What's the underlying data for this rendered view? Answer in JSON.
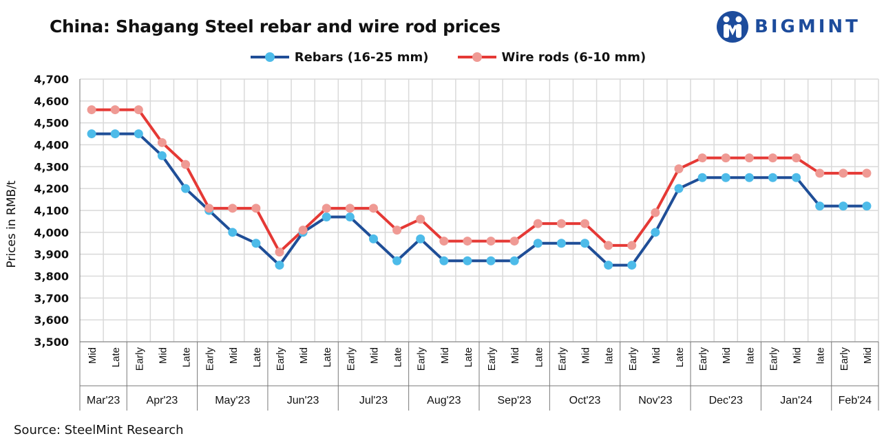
{
  "title": "China: Shagang Steel rebar and wire rod prices",
  "logo": {
    "text": "BIGMINT",
    "icon": "bigmint-logo-icon",
    "color": "#1d4c9c"
  },
  "source": "Source: SteelMint Research",
  "colors": {
    "rebar_line": "#1f4e97",
    "rebar_marker": "#4dbbe9",
    "wire_line": "#e53935",
    "wire_marker": "#ef9a94",
    "grid": "#d9d9d9"
  },
  "chart_data": {
    "type": "line",
    "title": "China: Shagang Steel rebar and wire rod prices",
    "xlabel": "",
    "ylabel": "Prices in RMB/t",
    "ylim": [
      3500,
      4700
    ],
    "yticks": [
      "3,500",
      "3,600",
      "3,700",
      "3,800",
      "3,900",
      "4,000",
      "4,100",
      "4,200",
      "4,300",
      "4,400",
      "4,500",
      "4,600",
      "4,700"
    ],
    "legend_position": "top-center",
    "grid": true,
    "x": [
      "Mid",
      "Late",
      "Early",
      "Mid",
      "Late",
      "Early",
      "Mid",
      "Late",
      "Early",
      "Mid",
      "Late",
      "Early",
      "Mid",
      "Late",
      "Early",
      "Mid",
      "Late",
      "Early",
      "Mid",
      "Late",
      "Early",
      "Mid",
      "late",
      "Early",
      "Mid",
      "Late",
      "Early",
      "Mid",
      "late",
      "Early",
      "Mid",
      "late",
      "Early",
      "Mid"
    ],
    "groups": [
      {
        "label": "Mar'23",
        "count": 2
      },
      {
        "label": "Apr'23",
        "count": 3
      },
      {
        "label": "May'23",
        "count": 3
      },
      {
        "label": "Jun'23",
        "count": 3
      },
      {
        "label": "Jul'23",
        "count": 3
      },
      {
        "label": "Aug'23",
        "count": 3
      },
      {
        "label": "Sep'23",
        "count": 3
      },
      {
        "label": "Oct'23",
        "count": 3
      },
      {
        "label": "Nov'23",
        "count": 3
      },
      {
        "label": "Dec'23",
        "count": 3
      },
      {
        "label": "Jan'24",
        "count": 3
      },
      {
        "label": "Feb'24",
        "count": 2
      }
    ],
    "series": [
      {
        "name": "Rebars (16-25 mm)",
        "values": [
          4450,
          4450,
          4450,
          4350,
          4200,
          4100,
          4000,
          3950,
          3850,
          4000,
          4070,
          4070,
          3970,
          3870,
          3970,
          3870,
          3870,
          3870,
          3870,
          3950,
          3950,
          3950,
          3850,
          3850,
          4000,
          4200,
          4250,
          4250,
          4250,
          4250,
          4250,
          4120,
          4120,
          4120
        ]
      },
      {
        "name": "Wire rods (6-10 mm)",
        "values": [
          4560,
          4560,
          4560,
          4410,
          4310,
          4110,
          4110,
          4110,
          3910,
          4010,
          4110,
          4110,
          4110,
          4010,
          4060,
          3960,
          3960,
          3960,
          3960,
          4040,
          4040,
          4040,
          3940,
          3940,
          4090,
          4290,
          4340,
          4340,
          4340,
          4340,
          4340,
          4270,
          4270,
          4270
        ]
      }
    ]
  }
}
